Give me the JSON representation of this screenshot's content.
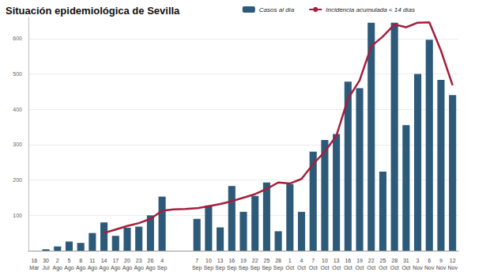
{
  "chart_data": {
    "type": "bar",
    "title": "Situación epidemiológica de Sevilla",
    "categories": [
      "16 Mar",
      "30 Jul",
      "2 Ago",
      "5 Ago",
      "8 Ago",
      "11 Ago",
      "14 Ago",
      "17 Ago",
      "20 Ago",
      "23 Ago",
      "26 Ago",
      "4 Sep",
      null,
      null,
      "7 Sep",
      "10 Sep",
      "13 Sep",
      "16 Sep",
      "19 Sep",
      "22 Sep",
      "25 Sep",
      "28 Sep",
      "1 Oct",
      "4 Oct",
      "7 Oct",
      "10 Oct",
      "13 Oct",
      "16 Oct",
      "19 Oct",
      "22 Oct",
      "25 Oct",
      "28 Oct",
      "31 Oct",
      "3 Nov",
      "6 Nov",
      "9 Nov",
      "12 Nov"
    ],
    "series": [
      {
        "name": "Casos al día",
        "type": "bar",
        "color": "#2e5a7a",
        "values": [
          0,
          4,
          12,
          26,
          22,
          50,
          80,
          42,
          65,
          68,
          100,
          153,
          null,
          null,
          90,
          128,
          66,
          183,
          110,
          155,
          193,
          55,
          188,
          110,
          280,
          313,
          330,
          478,
          460,
          645,
          224,
          645,
          355,
          500,
          597,
          483,
          440
        ]
      },
      {
        "name": "Incidencia acumulada < 14 días",
        "type": "line",
        "color": "#a31f3c",
        "line_style": "solid",
        "values": [
          null,
          null,
          null,
          null,
          null,
          null,
          50,
          60,
          70,
          78,
          90,
          113,
          117,
          118,
          120,
          126,
          132,
          140,
          150,
          160,
          175,
          193,
          190,
          203,
          245,
          280,
          325,
          430,
          482,
          578,
          606,
          640,
          632,
          645,
          646,
          566,
          468
        ]
      }
    ],
    "ylim": [
      0,
      660
    ],
    "yticks": [
      100,
      200,
      300,
      400,
      500,
      600
    ],
    "grid": true,
    "legend": "top"
  }
}
